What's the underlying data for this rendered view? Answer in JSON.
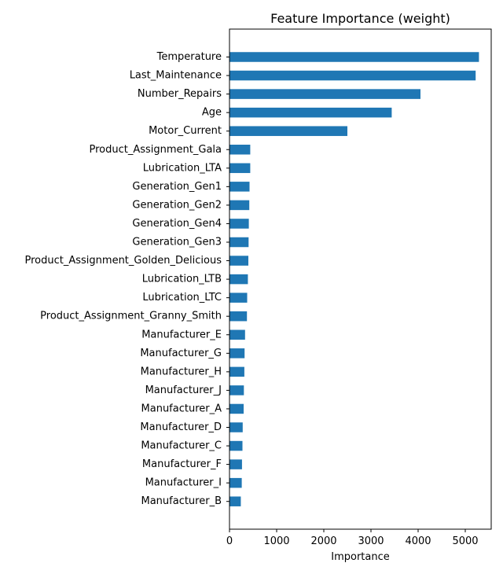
{
  "chart_data": {
    "type": "bar",
    "orientation": "horizontal",
    "title": "Feature Importance (weight)",
    "xlabel": "Importance",
    "ylabel": "",
    "xlim": [
      0,
      5550
    ],
    "xticks": [
      0,
      1000,
      2000,
      3000,
      4000,
      5000
    ],
    "grid": false,
    "color": "#1f77b4",
    "categories": [
      "Temperature",
      "Last_Maintenance",
      "Number_Repairs",
      "Age",
      "Motor_Current",
      "Product_Assignment_Gala",
      "Lubrication_LTA",
      "Generation_Gen1",
      "Generation_Gen2",
      "Generation_Gen4",
      "Generation_Gen3",
      "Product_Assignment_Golden_Delicious",
      "Lubrication_LTB",
      "Lubrication_LTC",
      "Product_Assignment_Granny_Smith",
      "Manufacturer_E",
      "Manufacturer_G",
      "Manufacturer_H",
      "Manufacturer_J",
      "Manufacturer_A",
      "Manufacturer_D",
      "Manufacturer_C",
      "Manufacturer_F",
      "Manufacturer_I",
      "Manufacturer_B"
    ],
    "values": [
      5290,
      5220,
      4050,
      3440,
      2500,
      440,
      440,
      425,
      420,
      410,
      405,
      400,
      390,
      375,
      370,
      330,
      320,
      315,
      305,
      300,
      280,
      275,
      265,
      260,
      240
    ]
  }
}
